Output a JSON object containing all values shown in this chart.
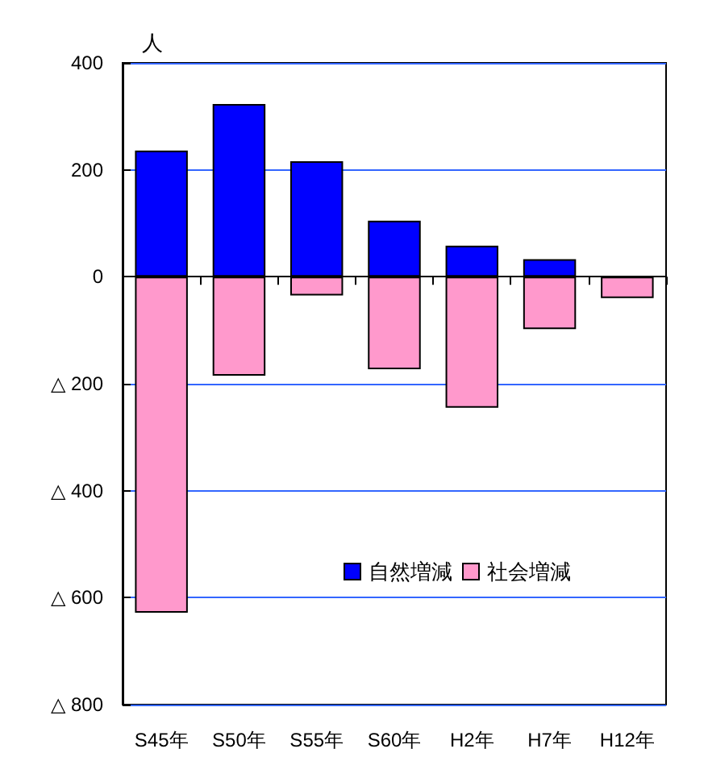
{
  "chart_data": {
    "type": "bar",
    "ylabel": "人",
    "stacked": true,
    "categories": [
      "S45年",
      "S50年",
      "S55年",
      "S60年",
      "H2年",
      "H7年",
      "H12年"
    ],
    "series": [
      {
        "name": "自然増減",
        "color": "#0000ff",
        "values": [
          236,
          323,
          216,
          105,
          58,
          33,
          null
        ]
      },
      {
        "name": "社会増減",
        "color": "#ff99cc",
        "values": [
          -628,
          -185,
          -35,
          -173,
          -245,
          -98,
          -40
        ]
      }
    ],
    "ylim": [
      -800,
      400
    ],
    "yticks": [
      {
        "value": -800,
        "label": "△ 800"
      },
      {
        "value": -600,
        "label": "△ 600"
      },
      {
        "value": -400,
        "label": "△ 400"
      },
      {
        "value": -200,
        "label": "△ 200"
      },
      0,
      200,
      400
    ],
    "grid": "y",
    "legend": "right"
  }
}
